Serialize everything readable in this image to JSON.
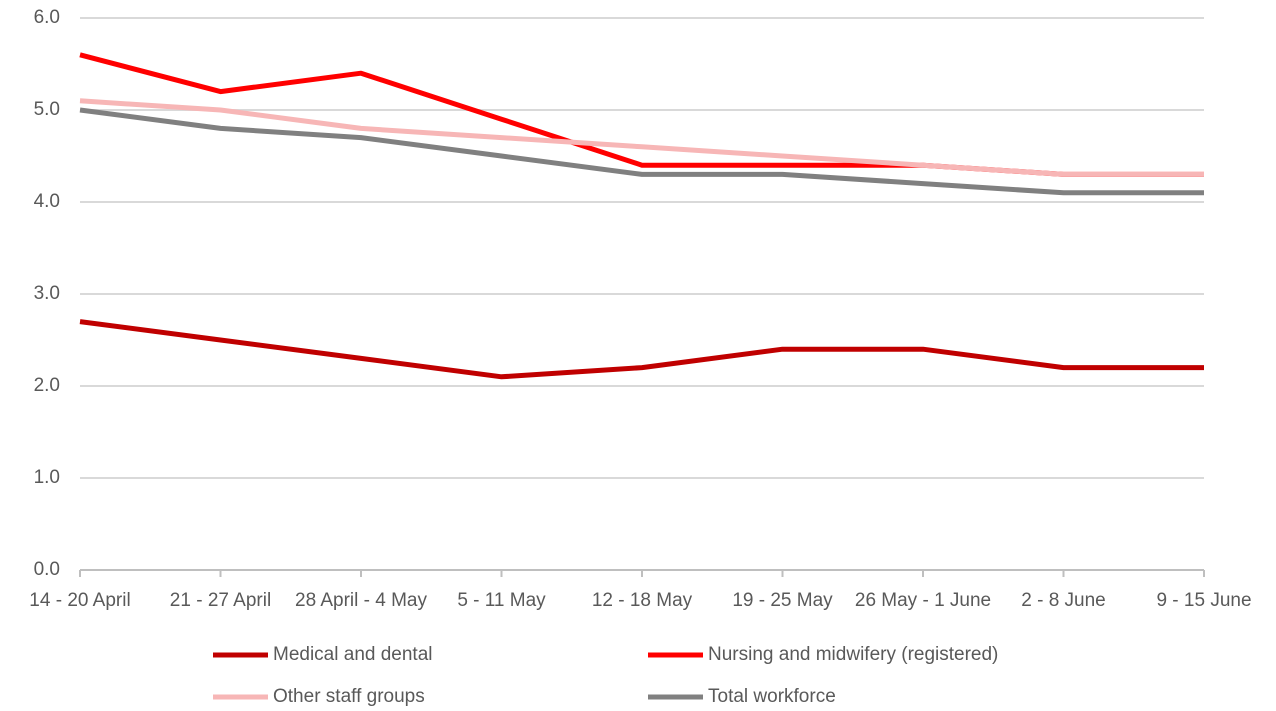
{
  "chart_data": {
    "type": "line",
    "categories": [
      "14 - 20 April",
      "21 - 27 April",
      "28 April - 4 May",
      "5 - 11 May",
      "12 - 18 May",
      "19 - 25 May",
      "26 May - 1 June",
      "2 - 8 June",
      "9 - 15 June"
    ],
    "series": [
      {
        "name": "Medical and dental",
        "color": "#c00000",
        "values": [
          2.7,
          2.5,
          2.3,
          2.1,
          2.2,
          2.4,
          2.4,
          2.2,
          2.2
        ]
      },
      {
        "name": "Nursing and midwifery (registered)",
        "color": "#ff0000",
        "values": [
          5.6,
          5.2,
          5.4,
          4.9,
          4.4,
          4.4,
          4.4,
          4.3,
          4.3
        ]
      },
      {
        "name": "Other staff groups",
        "color": "#f7b6b6",
        "values": [
          5.1,
          5.0,
          4.8,
          4.7,
          4.6,
          4.5,
          4.4,
          4.3,
          4.3
        ]
      },
      {
        "name": "Total workforce",
        "color": "#808080",
        "values": [
          5.0,
          4.8,
          4.7,
          4.5,
          4.3,
          4.3,
          4.2,
          4.1,
          4.1
        ]
      }
    ],
    "ylim": [
      0,
      6
    ],
    "yticks": [
      {
        "value": 0,
        "label": "0.0"
      },
      {
        "value": 1,
        "label": "1.0"
      },
      {
        "value": 2,
        "label": "2.0"
      },
      {
        "value": 3,
        "label": "3.0"
      },
      {
        "value": 4,
        "label": "4.0"
      },
      {
        "value": 5,
        "label": "5.0"
      },
      {
        "value": 6,
        "label": "6.0"
      }
    ],
    "grid": true,
    "legend": "bottom"
  }
}
